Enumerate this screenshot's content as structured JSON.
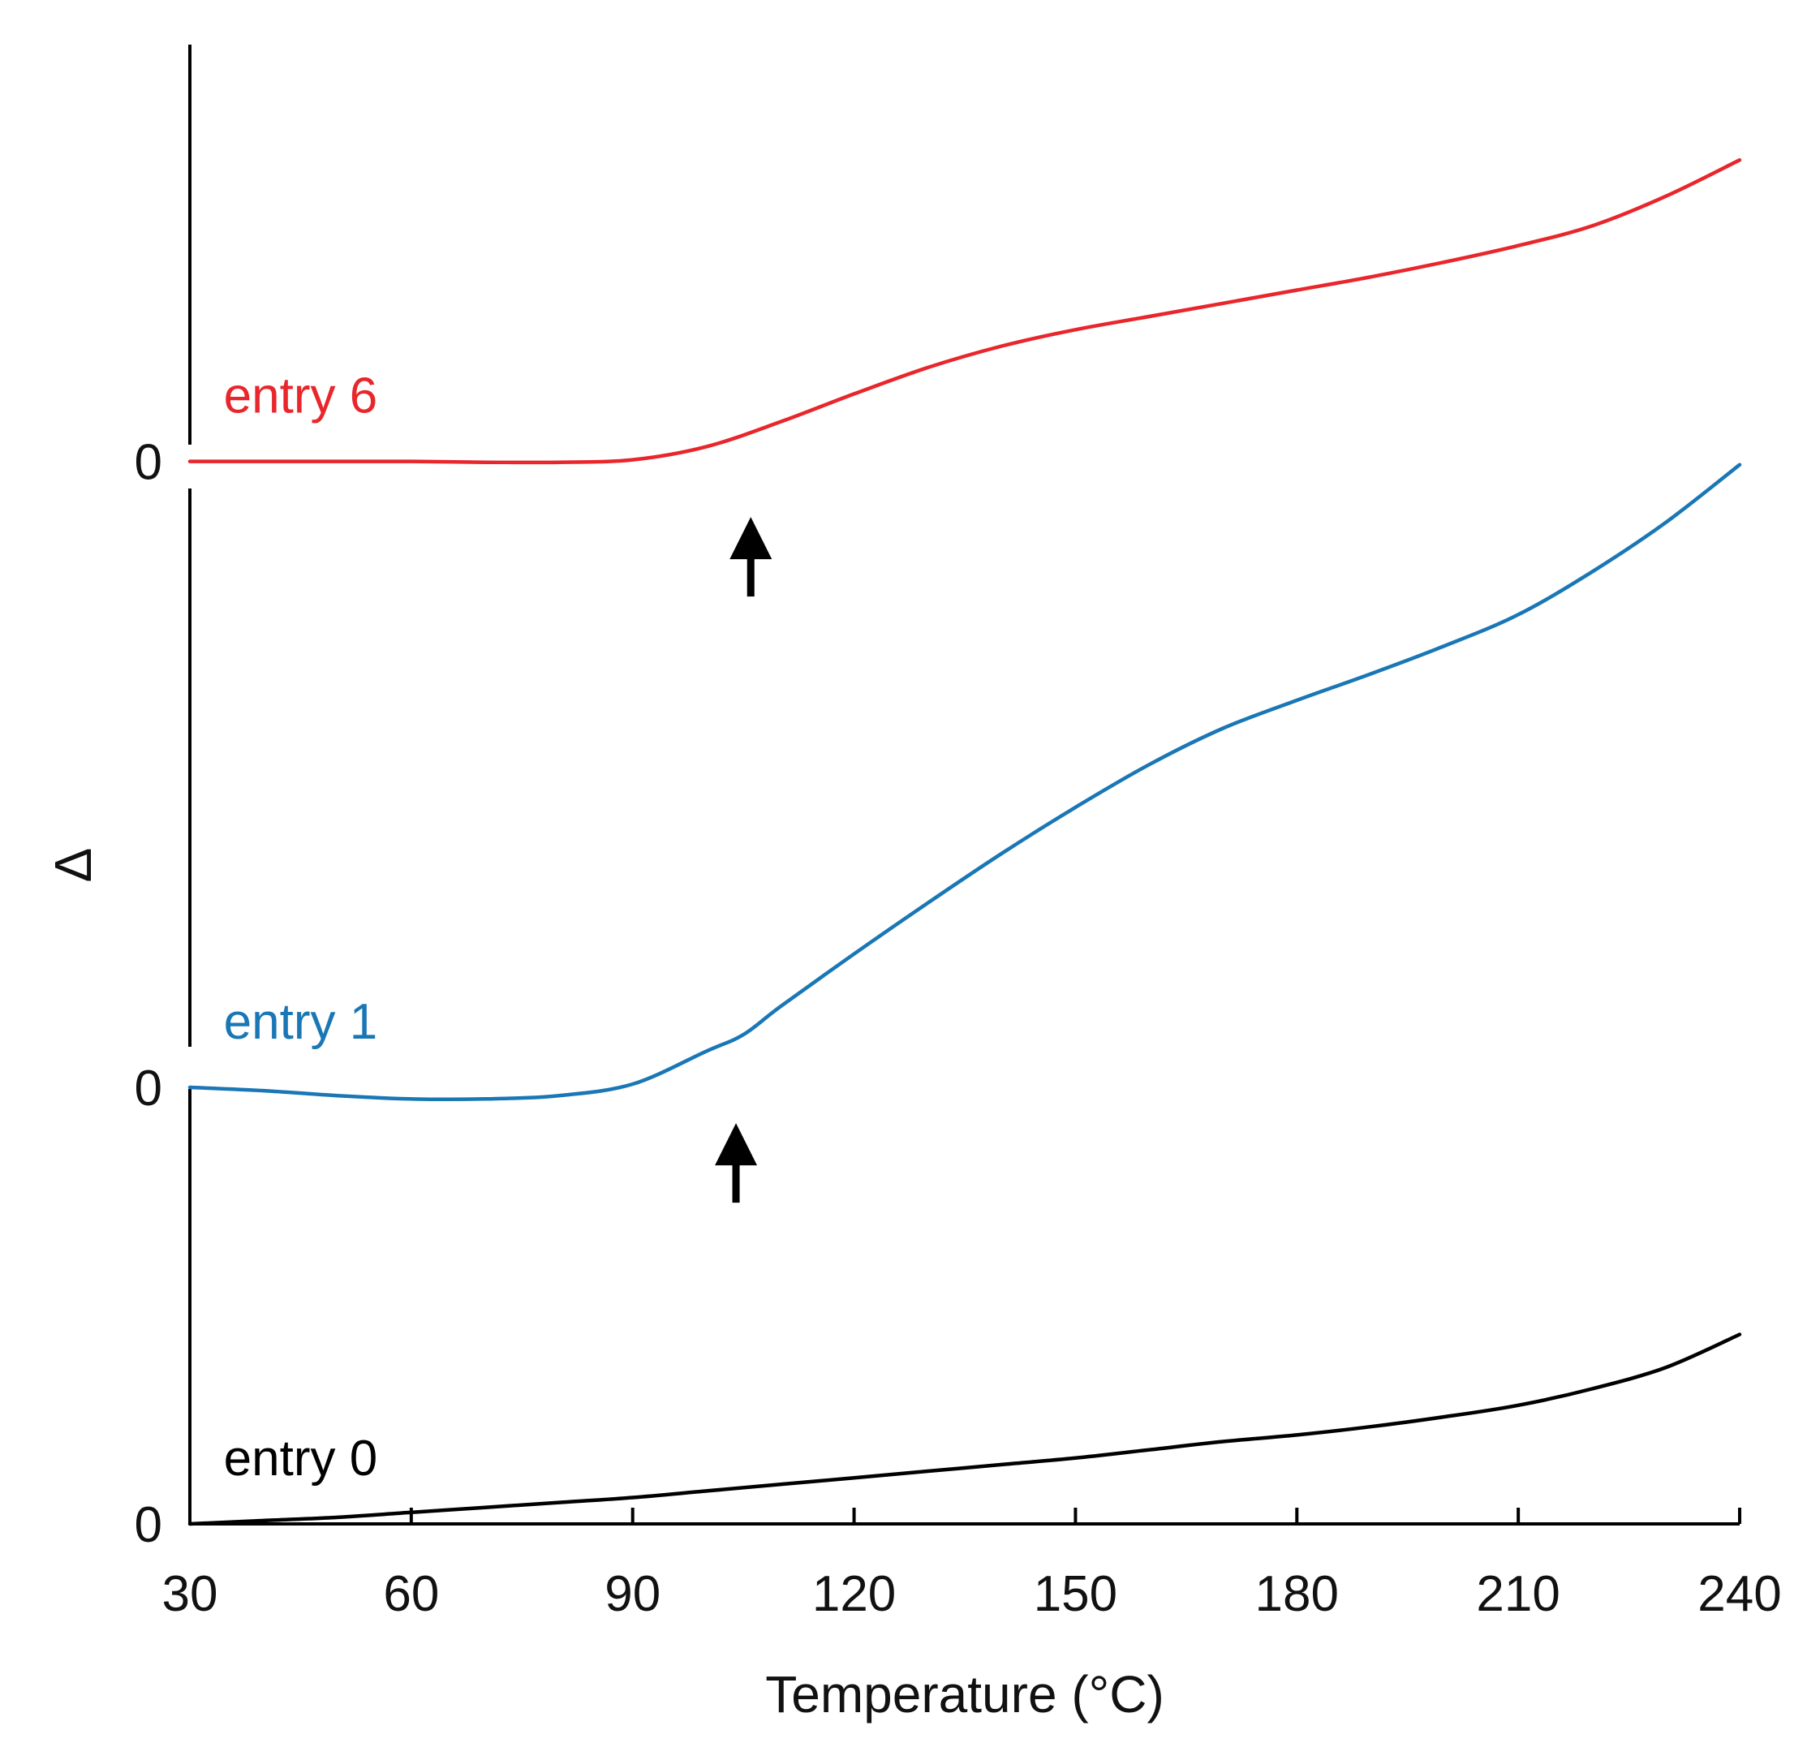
{
  "chart_data": {
    "type": "line",
    "title": "",
    "xlabel": "Temperature (°C)",
    "ylabel": "Δ",
    "xlim": [
      30,
      240
    ],
    "x_ticks": [
      30,
      60,
      90,
      120,
      150,
      180,
      210,
      240
    ],
    "x_tick_labels": [
      "30",
      "60",
      "90",
      "120",
      "150",
      "180",
      "210",
      "240"
    ],
    "zero_label": "0",
    "grid": false,
    "stacked_offsets": true,
    "series": [
      {
        "name": "entry 0",
        "color": "#000000",
        "offset": 0,
        "x": [
          30,
          40,
          50,
          60,
          70,
          80,
          90,
          100,
          110,
          120,
          130,
          140,
          150,
          160,
          170,
          180,
          190,
          200,
          210,
          220,
          230,
          240
        ],
        "y": [
          0,
          0.2,
          0.4,
          0.7,
          1.0,
          1.3,
          1.6,
          2.0,
          2.4,
          2.8,
          3.2,
          3.6,
          4.0,
          4.5,
          5.0,
          5.4,
          5.9,
          6.5,
          7.2,
          8.2,
          9.5,
          11.5
        ]
      },
      {
        "name": "entry 1",
        "color": "#1a77b5",
        "offset": 26.5,
        "x": [
          30,
          40,
          50,
          60,
          70,
          80,
          90,
          100,
          105,
          110,
          120,
          130,
          140,
          150,
          160,
          170,
          180,
          190,
          200,
          210,
          220,
          230,
          240
        ],
        "y": [
          0,
          -0.2,
          -0.5,
          -0.7,
          -0.7,
          -0.5,
          0.2,
          2.2,
          3.2,
          4.9,
          8.1,
          11.2,
          14.2,
          17.0,
          19.6,
          21.8,
          23.5,
          25.1,
          26.8,
          28.7,
          31.3,
          34.3,
          37.8
        ]
      },
      {
        "name": "entry 6",
        "color": "#e8262b",
        "offset": 64.5,
        "x": [
          30,
          40,
          50,
          60,
          70,
          80,
          90,
          100,
          110,
          120,
          130,
          140,
          150,
          160,
          170,
          180,
          190,
          200,
          210,
          220,
          230,
          240
        ],
        "y": [
          0,
          0,
          0,
          0,
          -0.05,
          -0.05,
          0.1,
          0.9,
          2.4,
          4.1,
          5.7,
          7.0,
          8.0,
          8.8,
          9.6,
          10.4,
          11.2,
          12.1,
          13.1,
          14.3,
          16.1,
          18.3
        ]
      }
    ],
    "annotations": [
      {
        "type": "arrow",
        "direction": "up",
        "series": "entry 1",
        "x": 104
      },
      {
        "type": "arrow",
        "direction": "up",
        "series": "entry 6",
        "x": 106
      }
    ]
  }
}
